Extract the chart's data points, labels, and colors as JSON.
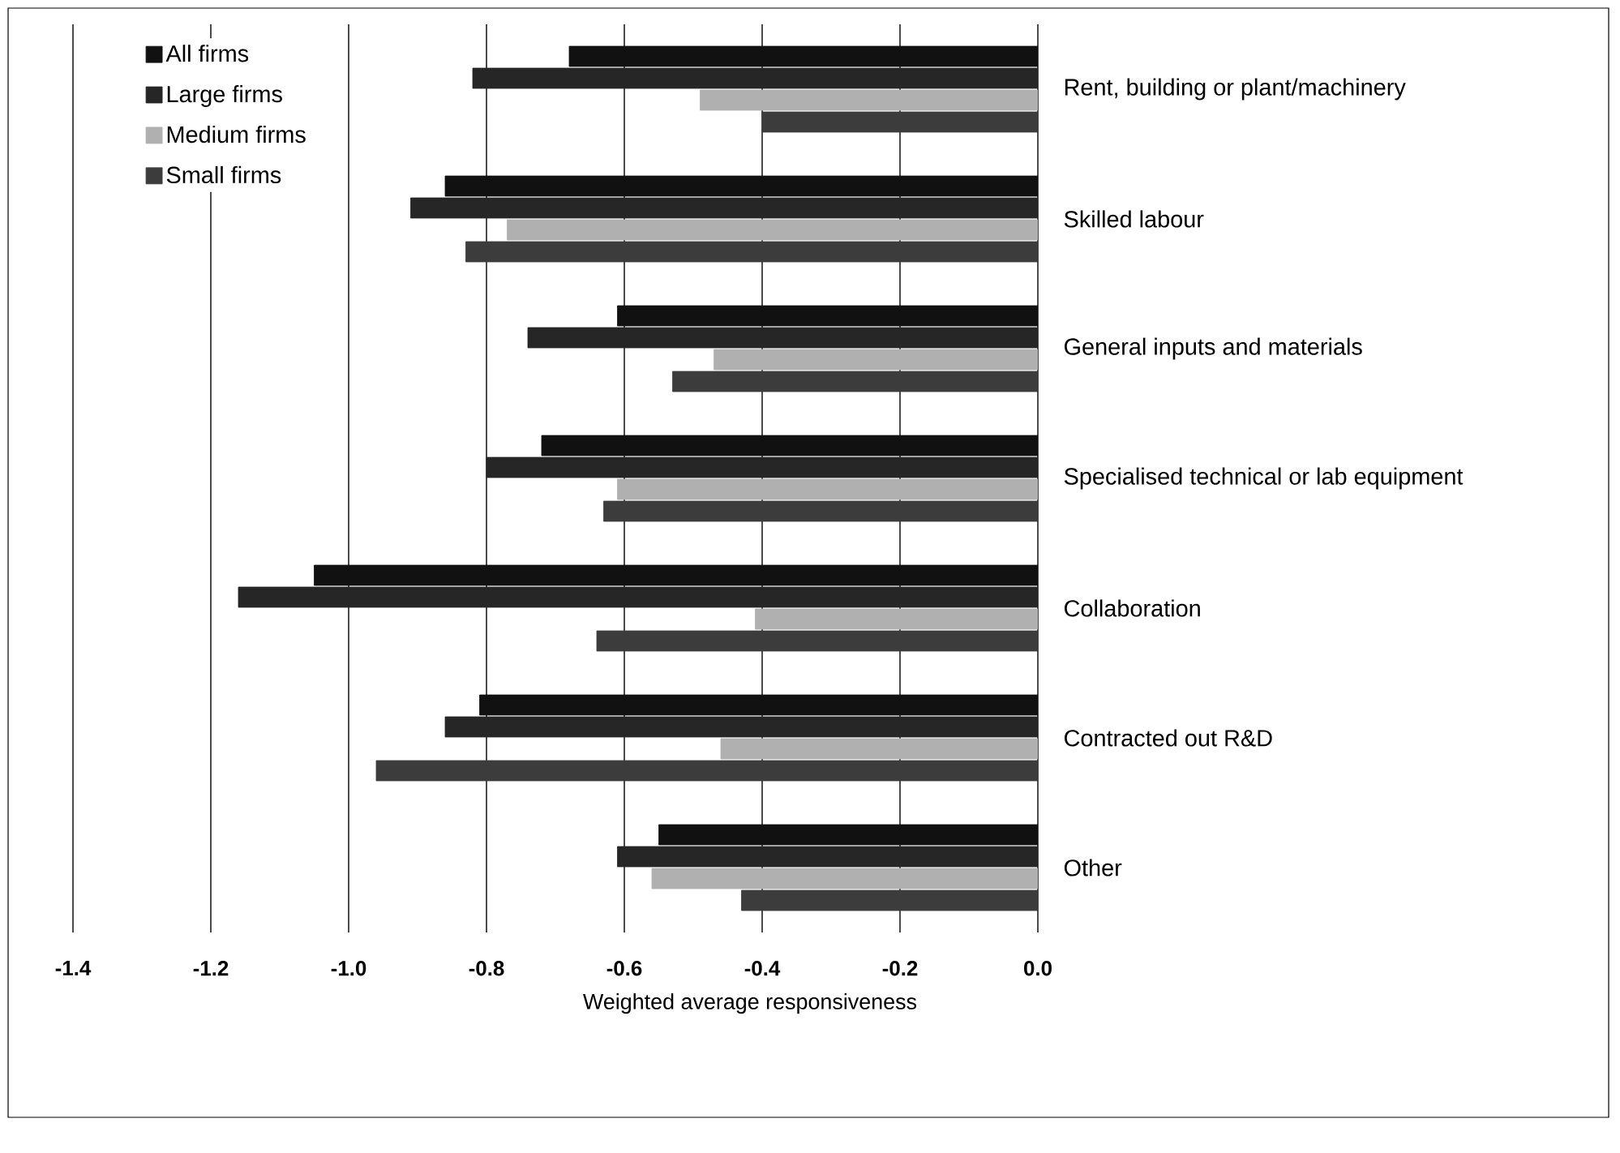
{
  "chart_data": {
    "type": "bar",
    "orientation": "horizontal",
    "xlabel": "Weighted average responsiveness",
    "categories": [
      "Rent, building or plant/machinery",
      "Skilled labour",
      "General inputs and materials",
      "Specialised technical or lab equipment",
      "Collaboration",
      "Contracted out R&D",
      "Other"
    ],
    "series": [
      {
        "name": "All firms",
        "color": "#111111",
        "values": [
          -0.68,
          -0.86,
          -0.61,
          -0.72,
          -1.05,
          -0.81,
          -0.55
        ]
      },
      {
        "name": "Large firms",
        "color": "#262626",
        "values": [
          -0.82,
          -0.91,
          -0.74,
          -0.8,
          -1.16,
          -0.86,
          -0.61
        ]
      },
      {
        "name": "Medium firms",
        "color": "#b0b0b0",
        "values": [
          -0.49,
          -0.77,
          -0.47,
          -0.61,
          -0.41,
          -0.46,
          -0.56
        ]
      },
      {
        "name": "Small firms",
        "color": "#3c3c3c",
        "values": [
          -0.4,
          -0.83,
          -0.53,
          -0.63,
          -0.64,
          -0.96,
          -0.43
        ]
      }
    ],
    "xlim": [
      -1.4,
      0
    ],
    "xticks": [
      -1.4,
      -1.2,
      {
        "value": -1.0,
        "label": "-1.0"
      },
      -0.8,
      -0.6,
      -0.4,
      -0.2,
      {
        "value": 0,
        "label": "0.0"
      }
    ],
    "grid": "x",
    "legend": "top left"
  }
}
